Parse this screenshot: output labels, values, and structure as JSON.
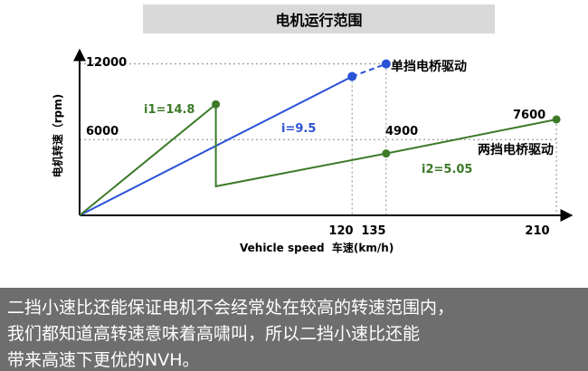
{
  "chart_data": {
    "type": "line",
    "title": "电机运行范围",
    "xlabel": "Vehicle speed  车速(km/h)",
    "ylabel": "电机转速（rpm)",
    "xlim": [
      0,
      210
    ],
    "ylim": [
      0,
      12000
    ],
    "x_ticks": [
      "120",
      "135",
      "210"
    ],
    "y_ticks": [
      "12000",
      "6000"
    ],
    "grid": "dotted reference lines",
    "series": [
      {
        "name": "单挡电桥驱动",
        "color": "#2a52d6",
        "ratio_label": "i=9.5",
        "points": [
          [
            0,
            0
          ],
          [
            120,
            11000
          ]
        ],
        "extension": [
          [
            120,
            11000
          ],
          [
            135,
            12000
          ]
        ]
      },
      {
        "name": "两挡电桥驱动",
        "color": "#3c7a28",
        "gear1_label": "i1=14.8",
        "gear2_label": "i2=5.05",
        "points": [
          [
            0,
            0
          ],
          [
            60,
            8800
          ],
          [
            60,
            2300
          ],
          [
            135,
            4900
          ],
          [
            210,
            7600
          ]
        ]
      }
    ],
    "annotations": {
      "v12000": "12000",
      "v6000": "6000",
      "v4900": "4900",
      "v7600": "7600"
    }
  },
  "caption": {
    "lines": [
      "二挡小速比还能保证电机不会经常处在较高的转速范围内，",
      "我们都知道高转速意味着高啸叫，所以二挡小速比还能",
      "带来高速下更优的NVH。"
    ]
  }
}
